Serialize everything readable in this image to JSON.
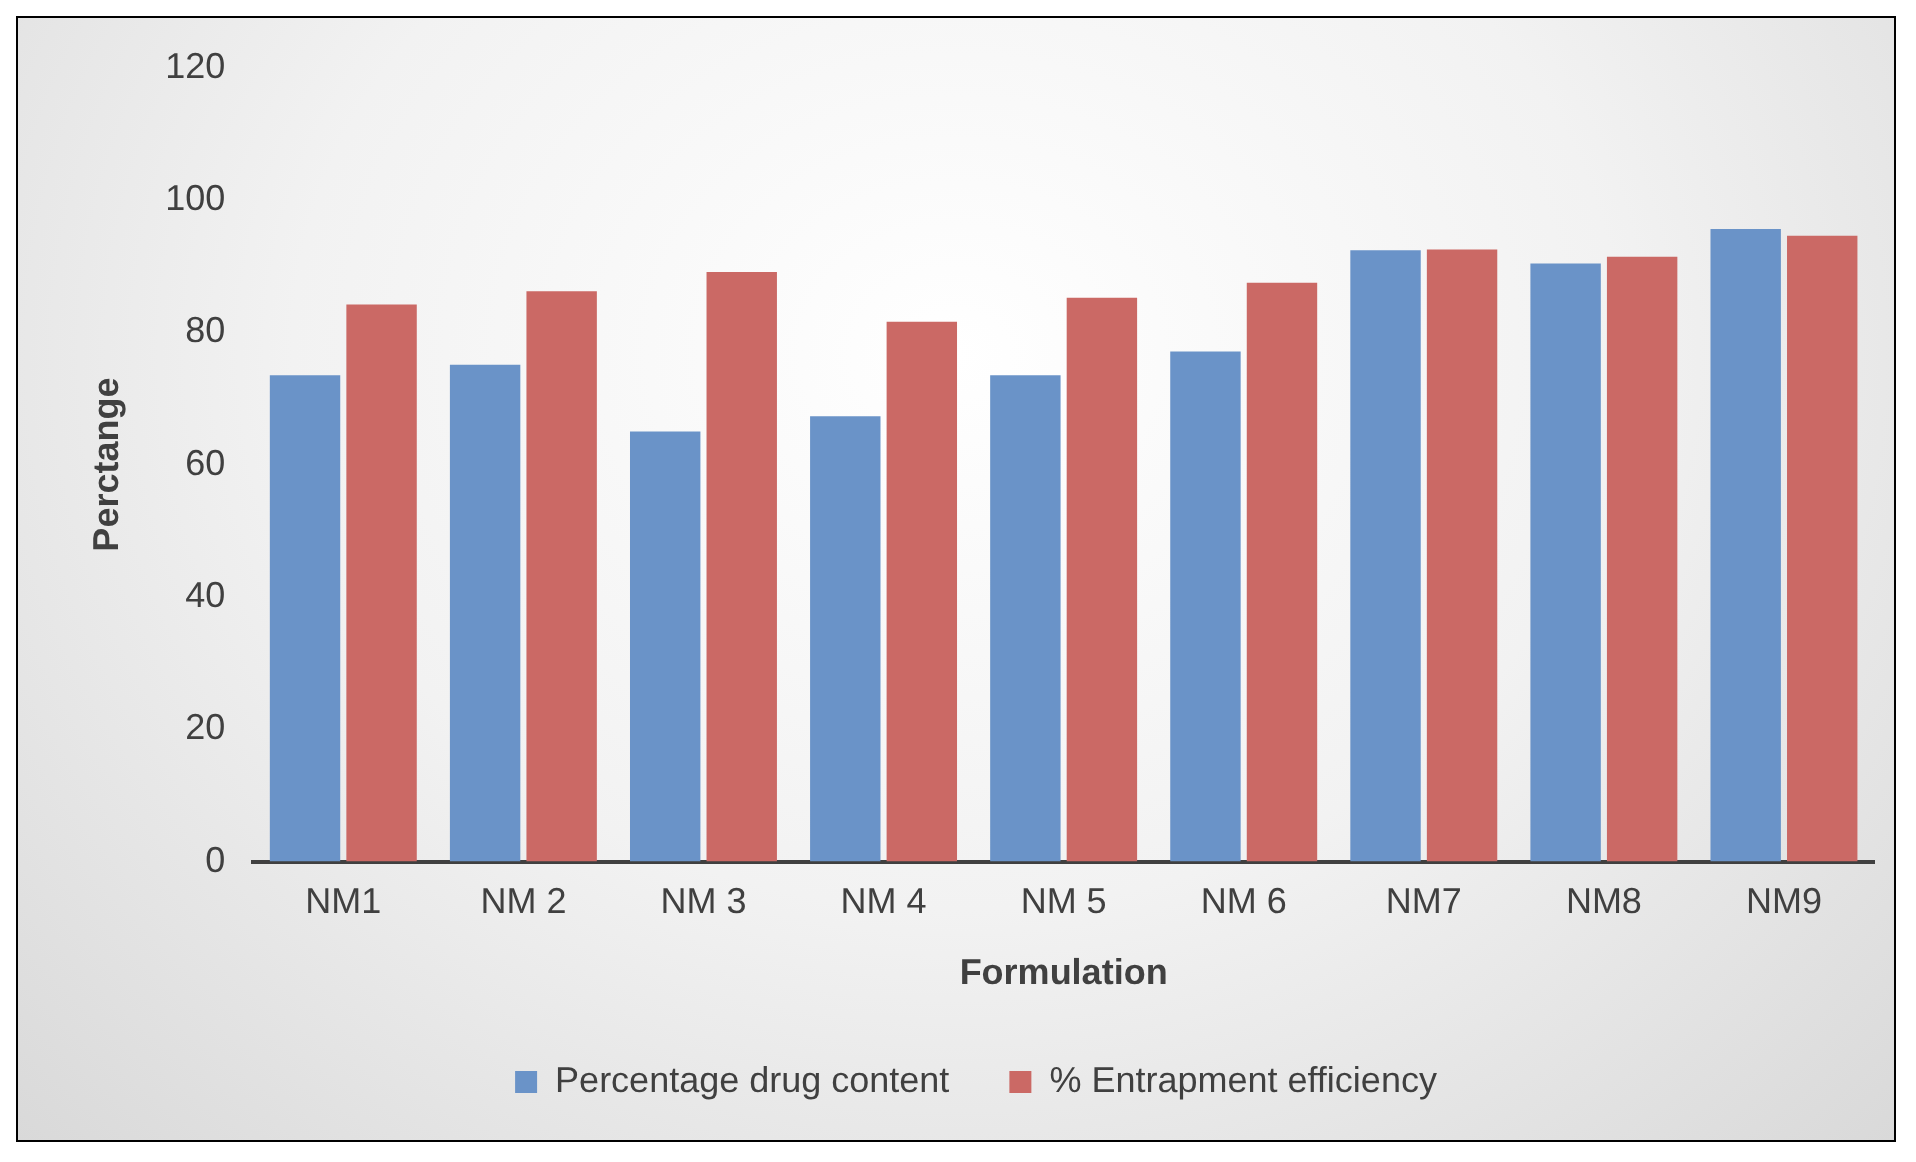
{
  "chart_data": {
    "type": "bar",
    "xlabel": "Formulation",
    "ylabel": "Perctange",
    "categories": [
      "NM1",
      "NM 2",
      "NM 3",
      "NM 4",
      "NM 5",
      "NM 6",
      "NM7",
      "NM8",
      "NM9"
    ],
    "series": [
      {
        "name": "Percentage drug content",
        "color": "#6a93c8",
        "values": [
          73.5,
          75.1,
          65,
          67.3,
          73.5,
          77.1,
          92.4,
          90.4,
          95.6
        ]
      },
      {
        "name": "% Entrapment efficiency",
        "color": "#cb6965",
        "values": [
          84.2,
          86.2,
          89.1,
          81.6,
          85.2,
          87.5,
          92.5,
          91.4,
          94.6
        ]
      }
    ],
    "ylim": [
      0,
      120
    ],
    "yticks": [
      0,
      20,
      40,
      60,
      80,
      100,
      120
    ],
    "grid": false,
    "legend": "bottom"
  }
}
